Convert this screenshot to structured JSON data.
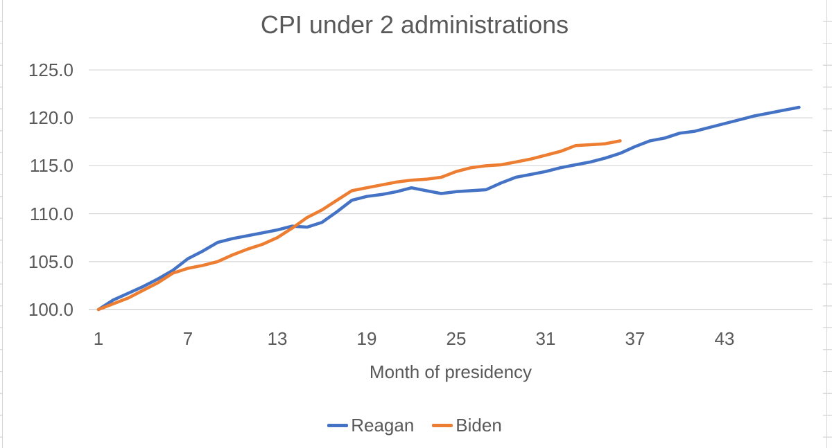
{
  "chart_data": {
    "type": "line",
    "title": "CPI under 2 administrations",
    "xlabel": "Month of presidency",
    "ylabel": "",
    "x_ticks": [
      1,
      7,
      13,
      19,
      25,
      31,
      37,
      43
    ],
    "y_ticks": [
      100,
      105,
      110,
      115,
      120,
      125
    ],
    "y_tick_labels": [
      "100.0",
      "105.0",
      "110.0",
      "115.0",
      "120.0",
      "125.0"
    ],
    "xlim": [
      1,
      49
    ],
    "ylim": [
      100,
      125
    ],
    "grid": true,
    "legend_position": "bottom",
    "colors": {
      "reagan": "#4472C4",
      "biden": "#ED7D31",
      "gridline": "#D9D9D9",
      "axis_line": "#C9C9C9",
      "text": "#595959"
    },
    "series": [
      {
        "name": "Reagan",
        "color": "#4472C4",
        "x_start": 1,
        "values": [
          100.0,
          101.0,
          101.7,
          102.4,
          103.2,
          104.1,
          105.3,
          106.1,
          107.0,
          107.4,
          107.7,
          108.0,
          108.3,
          108.7,
          108.6,
          109.1,
          110.2,
          111.4,
          111.8,
          112.0,
          112.3,
          112.7,
          112.4,
          112.1,
          112.3,
          112.4,
          112.5,
          113.2,
          113.8,
          114.1,
          114.4,
          114.8,
          115.1,
          115.4,
          115.8,
          116.3,
          117.0,
          117.6,
          117.9,
          118.4,
          118.6,
          119.0,
          119.4,
          119.8,
          120.2,
          120.5,
          120.8,
          121.1
        ]
      },
      {
        "name": "Biden",
        "color": "#ED7D31",
        "x_start": 1,
        "values": [
          100.0,
          100.6,
          101.2,
          102.0,
          102.8,
          103.8,
          104.3,
          104.6,
          105.0,
          105.7,
          106.3,
          106.8,
          107.5,
          108.5,
          109.6,
          110.4,
          111.4,
          112.4,
          112.7,
          113.0,
          113.3,
          113.5,
          113.6,
          113.8,
          114.4,
          114.8,
          115.0,
          115.1,
          115.4,
          115.7,
          116.1,
          116.5,
          117.1,
          117.2,
          117.3,
          117.6
        ]
      }
    ]
  }
}
